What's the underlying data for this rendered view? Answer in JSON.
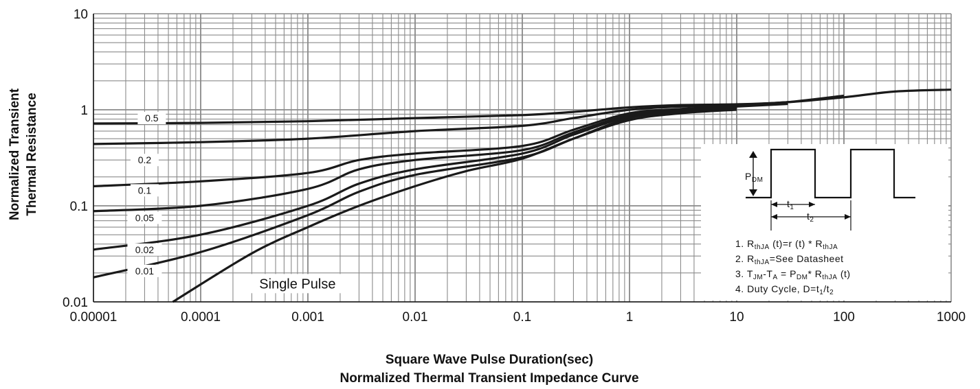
{
  "chart_data": {
    "type": "line",
    "title": "Normalized Thermal Transient Impedance Curve",
    "xlabel": "Square Wave Pulse Duration(sec)",
    "ylabel_line1": "Normalized Transient",
    "ylabel_line2": "Thermal Resistance",
    "x_scale": "log",
    "y_scale": "log",
    "xlim": [
      1e-05,
      1000
    ],
    "ylim": [
      0.01,
      10
    ],
    "x_ticks": [
      "0.00001",
      "0.0001",
      "0.001",
      "0.01",
      "0.1",
      "1",
      "10",
      "100",
      "1000"
    ],
    "y_ticks": [
      "0.01",
      "0.1",
      "1",
      "10"
    ],
    "grid": true,
    "series": [
      {
        "name": "0.5",
        "x": [
          1e-05,
          0.0001,
          0.001,
          0.01,
          0.1,
          0.3,
          1,
          3,
          10,
          30,
          100,
          300,
          1000
        ],
        "y": [
          0.72,
          0.73,
          0.76,
          0.82,
          0.88,
          0.95,
          1.06,
          1.12,
          1.14,
          1.2,
          1.35,
          1.55,
          1.62
        ]
      },
      {
        "name": "0.2",
        "x": [
          1e-05,
          0.0001,
          0.001,
          0.01,
          0.1,
          0.3,
          1,
          3,
          10,
          30
        ],
        "y": [
          0.44,
          0.46,
          0.5,
          0.6,
          0.68,
          0.82,
          1.0,
          1.08,
          1.12,
          1.2
        ]
      },
      {
        "name": "0.1",
        "x": [
          1e-05,
          0.0001,
          0.001,
          0.003,
          0.01,
          0.1,
          0.3,
          1,
          3,
          10,
          30,
          100
        ],
        "y": [
          0.16,
          0.18,
          0.22,
          0.3,
          0.35,
          0.42,
          0.62,
          0.92,
          1.02,
          1.1,
          1.2,
          1.4
        ]
      },
      {
        "name": "0.05",
        "x": [
          1e-05,
          0.0001,
          0.001,
          0.003,
          0.01,
          0.1,
          0.3,
          1,
          3,
          10,
          30
        ],
        "y": [
          0.088,
          0.1,
          0.15,
          0.24,
          0.3,
          0.38,
          0.58,
          0.88,
          1.0,
          1.08,
          1.15
        ]
      },
      {
        "name": "0.02",
        "x": [
          1e-05,
          0.0001,
          0.001,
          0.003,
          0.01,
          0.1,
          0.3,
          1,
          3,
          10
        ],
        "y": [
          0.035,
          0.05,
          0.1,
          0.17,
          0.24,
          0.35,
          0.55,
          0.85,
          0.98,
          1.05
        ]
      },
      {
        "name": "0.01",
        "x": [
          1e-05,
          0.0001,
          0.001,
          0.003,
          0.01,
          0.1,
          0.3,
          1,
          3,
          10
        ],
        "y": [
          0.018,
          0.033,
          0.08,
          0.14,
          0.21,
          0.32,
          0.5,
          0.82,
          0.95,
          1.03
        ]
      },
      {
        "name": "Single Pulse",
        "x": [
          5.5e-05,
          0.0003,
          0.001,
          0.003,
          0.01,
          0.03,
          0.1,
          0.3,
          1,
          3,
          10
        ],
        "y": [
          0.01,
          0.032,
          0.06,
          0.1,
          0.16,
          0.23,
          0.31,
          0.5,
          0.78,
          0.92,
          1.0
        ]
      }
    ]
  },
  "inset": {
    "pdm_label": "P",
    "pdm_sub": "DM",
    "t1_label": "t",
    "t1_sub": "1",
    "t2_label": "t",
    "t2_sub": "2",
    "notes": [
      {
        "num": "1.",
        "parts": [
          "R",
          "thJA",
          " (t)=r (t) * R",
          "thJA",
          ""
        ]
      },
      {
        "num": "2.",
        "parts": [
          "R",
          "thJA",
          "=See Datasheet",
          "",
          ""
        ]
      },
      {
        "num": "3.",
        "parts": [
          "T",
          "JM",
          "-T",
          "A",
          " = P",
          "DM",
          "* R",
          "thJA",
          " (t)"
        ]
      },
      {
        "num": "4.",
        "parts": [
          "Duty Cycle, D=t",
          "1",
          "/t",
          "2",
          ""
        ]
      }
    ]
  }
}
